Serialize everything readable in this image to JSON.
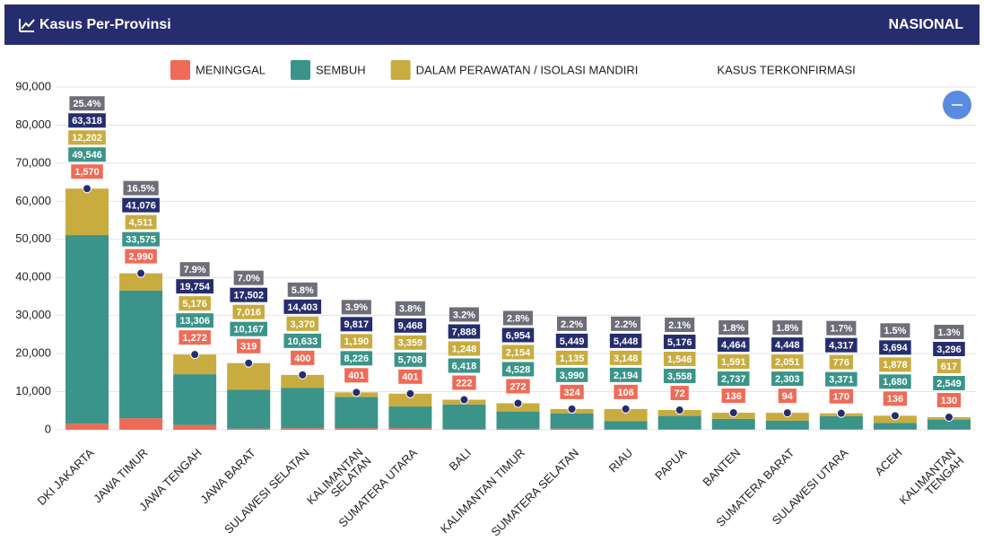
{
  "header": {
    "title": "Kasus Per-Provinsi",
    "scope": "NASIONAL"
  },
  "chart_data": {
    "type": "bar",
    "stacked": true,
    "categories": [
      "DKI JAKARTA",
      "JAWA TIMUR",
      "JAWA TENGAH",
      "JAWA BARAT",
      "SULAWESI SELATAN",
      "KALIMANTAN\nSELATAN",
      "SUMATERA UTARA",
      "BALI",
      "KALIMANTAN TIMUR",
      "SUMATERA SELATAN",
      "RIAU",
      "PAPUA",
      "BANTEN",
      "SUMATERA BARAT",
      "SULAWESI UTARA",
      "ACEH",
      "KALIMANTAN\nTENGAH"
    ],
    "series": [
      {
        "name": "MENINGGAL",
        "color": "#ef6b57",
        "type": "bar",
        "values": [
          1570,
          2990,
          1272,
          319,
          400,
          401,
          401,
          222,
          272,
          324,
          106,
          72,
          136,
          94,
          170,
          136,
          130
        ],
        "value_labels": [
          "1,570",
          "2,990",
          "1,272",
          "319",
          "400",
          "401",
          "401",
          "222",
          "272",
          "324",
          "106",
          "72",
          "136",
          "94",
          "170",
          "136",
          "130"
        ]
      },
      {
        "name": "SEMBUH",
        "color": "#3a9489",
        "type": "bar",
        "values": [
          49546,
          33575,
          13306,
          10167,
          10633,
          8226,
          5708,
          6418,
          4528,
          3990,
          2194,
          3558,
          2737,
          2303,
          3371,
          1680,
          2549
        ],
        "value_labels": [
          "49,546",
          "33,575",
          "13,306",
          "10,167",
          "10,633",
          "8,226",
          "5,708",
          "6,418",
          "4,528",
          "3,990",
          "2,194",
          "3,558",
          "2,737",
          "2,303",
          "3,371",
          "1,680",
          "2,549"
        ]
      },
      {
        "name": "DALAM PERAWATAN / ISOLASI MANDIRI",
        "color": "#c9ac3f",
        "type": "bar",
        "values": [
          12202,
          4511,
          5176,
          7016,
          3370,
          1190,
          3359,
          1248,
          2154,
          1135,
          3148,
          1546,
          1591,
          2051,
          776,
          1878,
          617
        ],
        "value_labels": [
          "12,202",
          "4,511",
          "5,176",
          "7,016",
          "3,370",
          "1,190",
          "3,359",
          "1,248",
          "2,154",
          "1,135",
          "3,148",
          "1,546",
          "1,591",
          "2,051",
          "776",
          "1,878",
          "617"
        ]
      },
      {
        "name": "KASUS TERKONFIRMASI",
        "color": "#262d6e",
        "type": "scatter",
        "values": [
          63318,
          41076,
          19754,
          17502,
          14403,
          9817,
          9468,
          7888,
          6954,
          5449,
          5448,
          5176,
          4464,
          4448,
          4317,
          3694,
          3296
        ],
        "value_labels": [
          "63,318",
          "41,076",
          "19,754",
          "17,502",
          "14,403",
          "9,817",
          "9,468",
          "7,888",
          "6,954",
          "5,449",
          "5,448",
          "5,176",
          "4,464",
          "4,448",
          "4,317",
          "3,694",
          "3,296"
        ]
      }
    ],
    "percent": {
      "color": "#6d6e78",
      "values": [
        25.4,
        16.5,
        7.9,
        7.0,
        5.8,
        3.9,
        3.8,
        3.2,
        2.8,
        2.2,
        2.2,
        2.1,
        1.8,
        1.8,
        1.7,
        1.5,
        1.3
      ],
      "value_labels": [
        "25.4%",
        "16.5%",
        "7.9%",
        "7.0%",
        "5.8%",
        "3.9%",
        "3.8%",
        "3.2%",
        "2.8%",
        "2.2%",
        "2.2%",
        "2.1%",
        "1.8%",
        "1.8%",
        "1.7%",
        "1.5%",
        "1.3%"
      ]
    },
    "ylim": [
      0,
      90000
    ],
    "yticks": [
      0,
      {
        "value": 10000,
        "label": "10,000"
      },
      {
        "value": 20000,
        "label": "20,000"
      },
      {
        "value": 30000,
        "label": "30,000"
      },
      {
        "value": 40000,
        "label": "40,000"
      },
      {
        "value": 50000,
        "label": "50,000"
      },
      {
        "value": 60000,
        "label": "60,000"
      },
      {
        "value": 70000,
        "label": "70,000"
      },
      {
        "value": 80000,
        "label": "80,000"
      },
      {
        "value": 90000,
        "label": "90,000"
      }
    ],
    "grid": true
  }
}
